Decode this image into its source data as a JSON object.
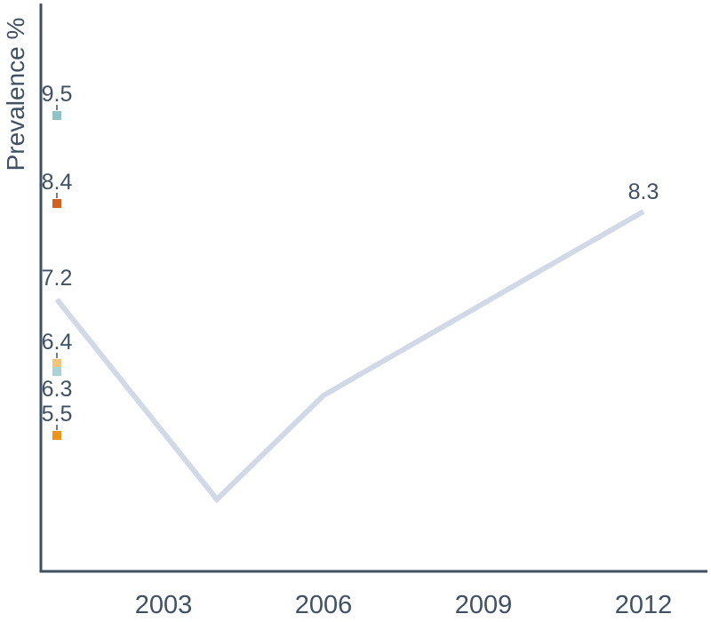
{
  "chart_data": {
    "type": "line",
    "title": "",
    "xlabel": "",
    "ylabel": "Prevalence %",
    "x_ticks": [
      "2003",
      "2006",
      "2009",
      "2012"
    ],
    "xlim": [
      2000.7,
      2013.2
    ],
    "ylim": [
      3.8,
      10.9
    ],
    "grid": false,
    "legend": "none",
    "series": [
      {
        "color": "#d1d9e6",
        "points": [
          {
            "x": 2001,
            "y": 7.2,
            "label": "7.2"
          },
          {
            "x": 2004,
            "y": 4.7
          },
          {
            "x": 2006,
            "y": 6.0
          },
          {
            "x": 2012,
            "y": 8.3,
            "label": "8.3"
          }
        ]
      },
      {
        "color": "#8fc3c9",
        "points": [
          {
            "x": 2001,
            "y": 9.5,
            "label": "9.5"
          }
        ]
      },
      {
        "color": "#d4601f",
        "points": [
          {
            "x": 2001,
            "y": 8.4,
            "label": "8.4"
          }
        ]
      },
      {
        "color": "#f3c47c",
        "points": [
          {
            "x": 2001,
            "y": 6.4,
            "label": "6.4"
          }
        ]
      },
      {
        "color": "#a9d3d6",
        "points": [
          {
            "x": 2001,
            "y": 6.3,
            "label": "6.3"
          }
        ]
      },
      {
        "color": "#ef9415",
        "points": [
          {
            "x": 2001,
            "y": 5.5,
            "label": "5.5"
          }
        ]
      }
    ]
  }
}
